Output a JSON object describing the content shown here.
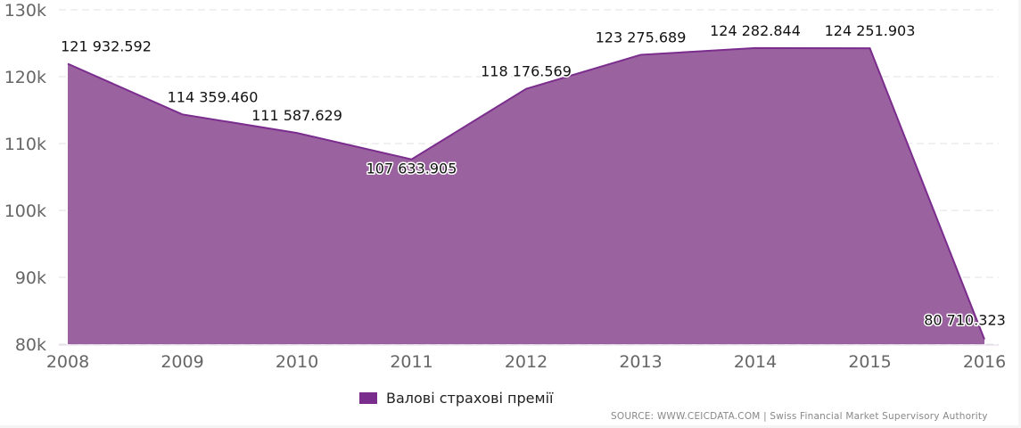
{
  "chart_data": {
    "type": "area",
    "title": "",
    "xlabel": "",
    "ylabel": "",
    "categories": [
      "2008",
      "2009",
      "2010",
      "2011",
      "2012",
      "2013",
      "2014",
      "2015",
      "2016"
    ],
    "series": [
      {
        "name": "Валові страхові премії",
        "color": "#9b62a0",
        "line_color": "#7b2d8e",
        "values": [
          121932.592,
          114359.46,
          111587.629,
          107633.905,
          118176.569,
          123275.689,
          124282.844,
          124251.903,
          80710.323
        ],
        "labels": [
          "121 932.592",
          "114 359.460",
          "111 587.629",
          "107 633.905",
          "118 176.569",
          "123 275.689",
          "124 282.844",
          "124 251.903",
          "80 710.323"
        ]
      }
    ],
    "ylim": [
      80000,
      130000
    ],
    "yticks": [
      80000,
      90000,
      100000,
      110000,
      120000,
      130000
    ],
    "ytick_labels": [
      "80k",
      "90k",
      "100k",
      "110k",
      "120k",
      "130k"
    ],
    "grid": true,
    "legend_position": "bottom"
  },
  "legend": {
    "label": "Валові страхові премії",
    "color": "#7b2d8e"
  },
  "source": "SOURCE: WWW.CEICDATA.COM | Swiss Financial Market Supervisory Authority"
}
